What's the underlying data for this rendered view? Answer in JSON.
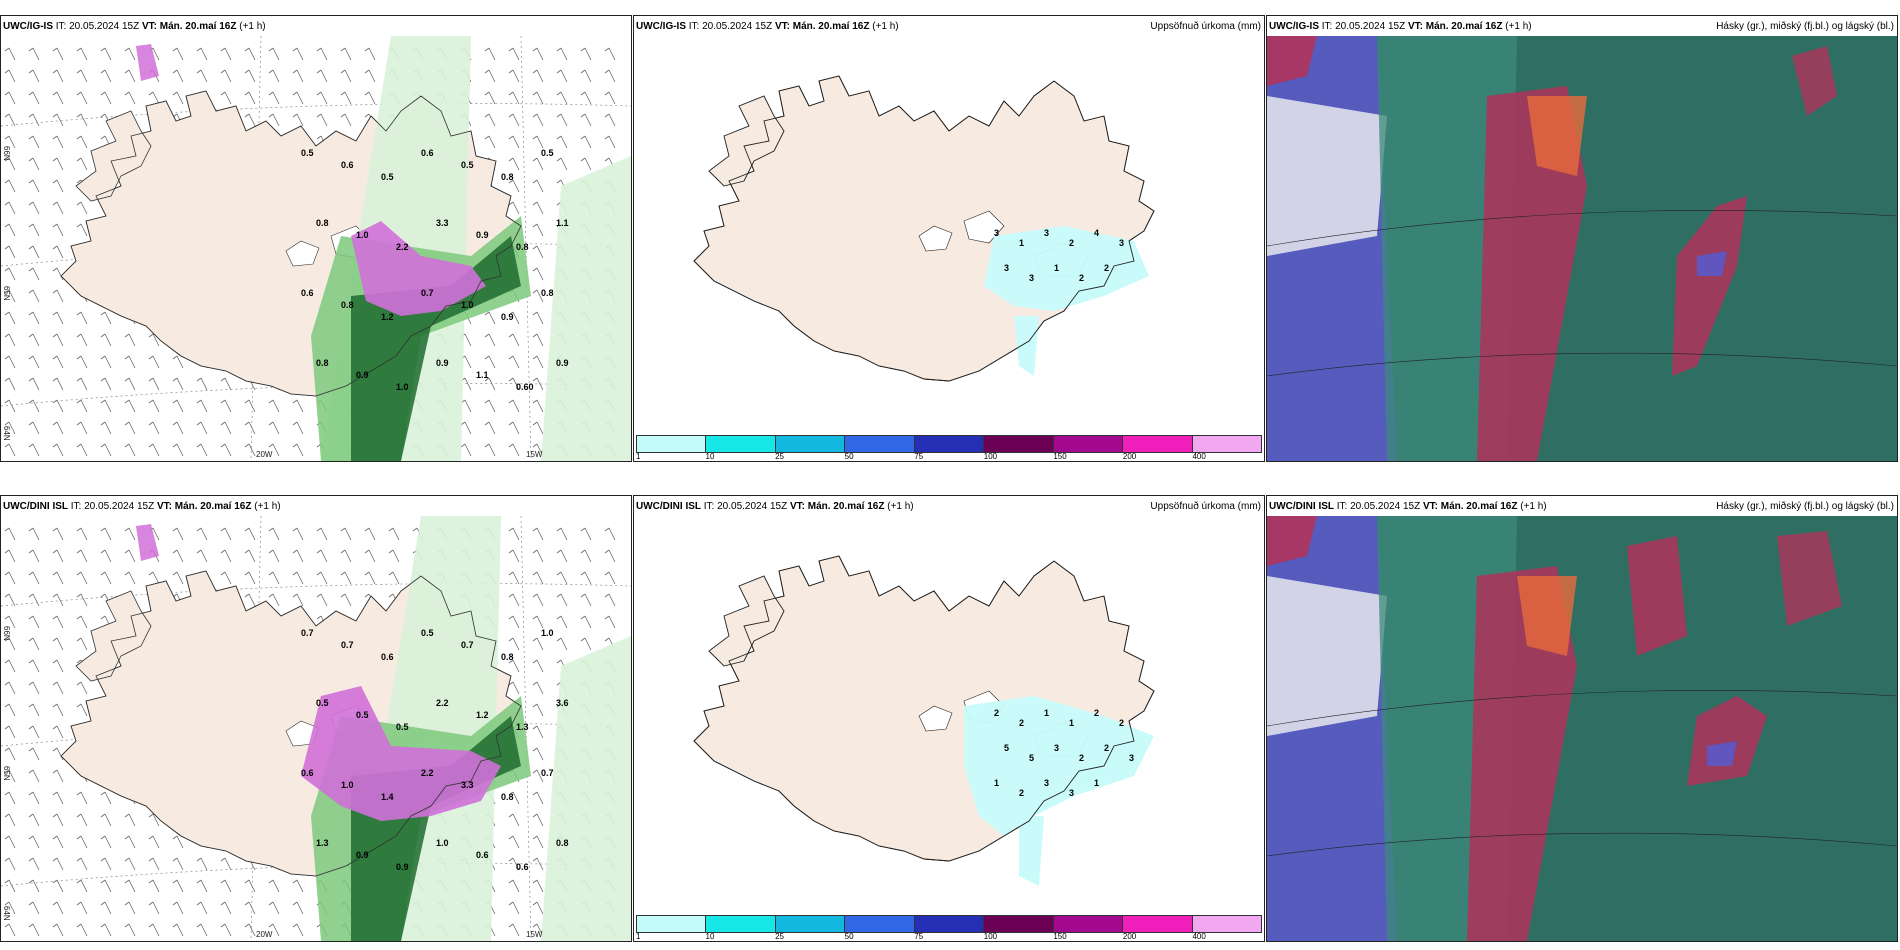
{
  "rows": [
    {
      "model": "UWC/IG-IS",
      "panels": [
        {
          "type": "precip-wind",
          "model_label": "UWC/IG-IS",
          "it_label": "IT: 20.05.2024 15Z",
          "vt_label": "VT: Mán. 20.maí 16Z",
          "lead_label": "(+1 h)",
          "right_label": "",
          "values": [
            "0.5",
            "0.6",
            "0.5",
            "0.6",
            "0.5",
            "0.8",
            "0.5",
            "0.8",
            "1.0",
            "2.2",
            "3.3",
            "0.9",
            "0.8",
            "1.1",
            "0.6",
            "0.8",
            "1.2",
            "0.7",
            "1.0",
            "0.9",
            "0.8",
            "0.8",
            "0.9",
            "1.0",
            "0.9",
            "1.1",
            "0.60",
            "0.9"
          ],
          "lat_labels": [
            "66N",
            "65N",
            "64N"
          ],
          "lon_labels": [
            "20W",
            "15W"
          ]
        },
        {
          "type": "accum-precip",
          "model_label": "UWC/IG-IS",
          "it_label": "IT: 20.05.2024 15Z",
          "vt_label": "VT: Mán. 20.maí 16Z",
          "lead_label": "(+1 h)",
          "right_label": "Uppsöfnuð úrkoma (mm)",
          "values": [
            "3",
            "1",
            "3",
            "2",
            "4",
            "3",
            "3",
            "3",
            "1",
            "2",
            "2"
          ],
          "colorbar": [
            "1",
            "10",
            "25",
            "50",
            "75",
            "100",
            "150",
            "200",
            "400"
          ]
        },
        {
          "type": "cloud-cover",
          "model_label": "UWC/IG-IS",
          "it_label": "IT: 20.05.2024 15Z",
          "vt_label": "VT: Mán. 20.maí 16Z",
          "lead_label": "(+1 h)",
          "right_label": "Hásky (gr.), miðský (fj.bl.) og lágský (bl.)"
        }
      ]
    },
    {
      "model": "UWC/DINI ISL",
      "panels": [
        {
          "type": "precip-wind",
          "model_label": "UWC/DINI ISL",
          "it_label": "IT: 20.05.2024 15Z",
          "vt_label": "VT: Mán. 20.maí 16Z",
          "lead_label": "(+1 h)",
          "right_label": "",
          "values": [
            "0.7",
            "0.7",
            "0.6",
            "0.5",
            "0.7",
            "0.8",
            "1.0",
            "0.5",
            "0.5",
            "0.5",
            "2.2",
            "1.2",
            "1.3",
            "3.6",
            "0.6",
            "1.0",
            "1.4",
            "2.2",
            "3.3",
            "0.8",
            "0.7",
            "1.3",
            "0.9",
            "0.9",
            "1.0",
            "0.6",
            "0.6",
            "0.8"
          ],
          "lat_labels": [
            "66N",
            "65N",
            "64N"
          ],
          "lon_labels": [
            "20W",
            "15W"
          ]
        },
        {
          "type": "accum-precip",
          "model_label": "UWC/DINI ISL",
          "it_label": "IT: 20.05.2024 15Z",
          "vt_label": "VT: Mán. 20.maí 16Z",
          "lead_label": "(+1 h)",
          "right_label": "Uppsöfnuð úrkoma (mm)",
          "values": [
            "2",
            "2",
            "1",
            "1",
            "2",
            "2",
            "5",
            "5",
            "3",
            "2",
            "2",
            "3",
            "1",
            "2",
            "3",
            "3",
            "1"
          ],
          "colorbar": [
            "1",
            "10",
            "25",
            "50",
            "75",
            "100",
            "150",
            "200",
            "400"
          ]
        },
        {
          "type": "cloud-cover",
          "model_label": "UWC/DINI ISL",
          "it_label": "IT: 20.05.2024 15Z",
          "vt_label": "VT: Mán. 20.maí 16Z",
          "lead_label": "(+1 h)",
          "right_label": "Hásky (gr.), miðský (fj.bl.) og lágský (bl.)"
        }
      ]
    }
  ],
  "colors": {
    "land": "#f7ebe1",
    "precip_light": "#d9f2d9",
    "precip_mid": "#7cc97c",
    "precip_dark": "#1f6b2f",
    "precip_heavy": "#d070d8",
    "accum_cyan": "#c7fbfb",
    "cloud_high": "#b0335a",
    "cloud_mid": "#2e7d6a",
    "cloud_low": "#5a5ac8",
    "colorbar": [
      "#c2fafa",
      "#18e7e7",
      "#12b8e0",
      "#3267e6",
      "#2630b7",
      "#6b0055",
      "#a3098f",
      "#f01ebb",
      "#f2a8f0"
    ]
  }
}
